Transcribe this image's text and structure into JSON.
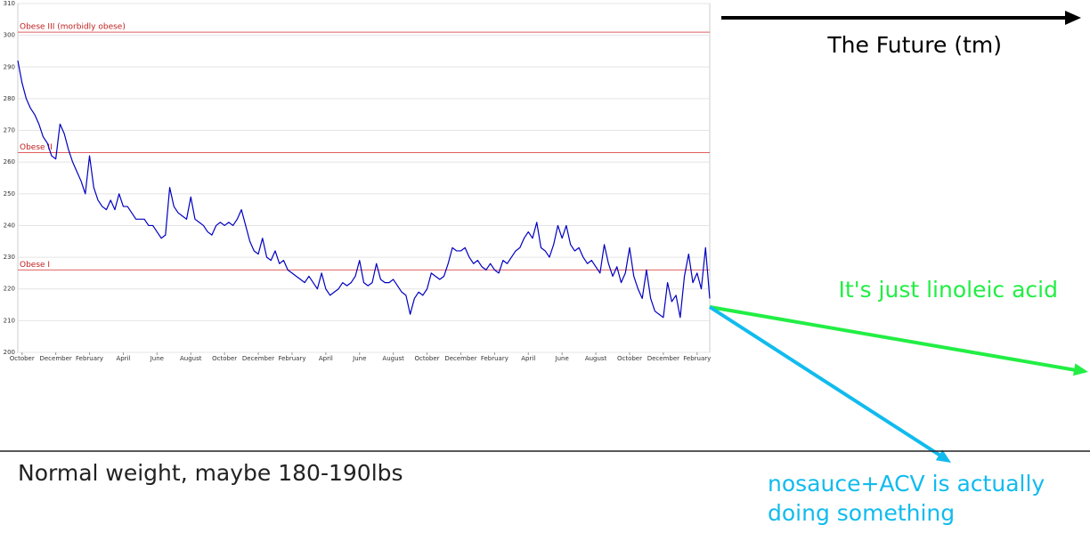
{
  "chart_data": {
    "type": "line",
    "categories": [
      null,
      "October",
      null,
      null,
      null,
      null,
      null,
      null,
      null,
      "December",
      null,
      null,
      null,
      null,
      null,
      null,
      null,
      "February",
      null,
      null,
      null,
      null,
      null,
      null,
      null,
      "April",
      null,
      null,
      null,
      null,
      null,
      null,
      null,
      "June",
      null,
      null,
      null,
      null,
      null,
      null,
      null,
      "August",
      null,
      null,
      null,
      null,
      null,
      null,
      null,
      "October",
      null,
      null,
      null,
      null,
      null,
      null,
      null,
      "December",
      null,
      null,
      null,
      null,
      null,
      null,
      null,
      "February",
      null,
      null,
      null,
      null,
      null,
      null,
      null,
      "April",
      null,
      null,
      null,
      null,
      null,
      null,
      null,
      "June",
      null,
      null,
      null,
      null,
      null,
      null,
      null,
      "August",
      null,
      null,
      null,
      null,
      null,
      null,
      null,
      "October",
      null,
      null,
      null,
      null,
      null,
      null,
      null,
      "December",
      null,
      null,
      null,
      null,
      null,
      null,
      null,
      "February",
      null,
      null,
      null,
      null,
      null,
      null,
      null,
      "April",
      null,
      null,
      null,
      null,
      null,
      null,
      null,
      "June",
      null,
      null,
      null,
      null,
      null,
      null,
      null,
      "August",
      null,
      null,
      null,
      null,
      null,
      null,
      null,
      "October",
      null,
      null,
      null,
      null,
      null,
      null,
      null,
      "December",
      null,
      null,
      null,
      null,
      null,
      null,
      null,
      "February",
      null,
      null,
      null
    ],
    "values": [
      292,
      285,
      280,
      277,
      275,
      272,
      268,
      266,
      262,
      261,
      272,
      269,
      264,
      260,
      257,
      254,
      250,
      262,
      252,
      248,
      246,
      245,
      248,
      245,
      250,
      246,
      246,
      244,
      242,
      242,
      242,
      240,
      240,
      238,
      236,
      237,
      252,
      246,
      244,
      243,
      242,
      249,
      242,
      241,
      240,
      238,
      237,
      240,
      241,
      240,
      241,
      240,
      242,
      245,
      240,
      235,
      232,
      231,
      236,
      230,
      229,
      232,
      228,
      229,
      226,
      225,
      224,
      223,
      222,
      224,
      222,
      220,
      225,
      220,
      218,
      219,
      220,
      222,
      221,
      222,
      224,
      229,
      222,
      221,
      222,
      228,
      223,
      222,
      222,
      223,
      221,
      219,
      218,
      212,
      217,
      219,
      218,
      220,
      225,
      224,
      223,
      224,
      228,
      233,
      232,
      232,
      233,
      230,
      228,
      229,
      227,
      226,
      228,
      226,
      225,
      229,
      228,
      230,
      232,
      233,
      236,
      238,
      236,
      241,
      233,
      232,
      230,
      234,
      240,
      236,
      240,
      234,
      232,
      233,
      230,
      228,
      229,
      227,
      225,
      234,
      228,
      224,
      227,
      222,
      225,
      233,
      224,
      220,
      217,
      226,
      217,
      213,
      212,
      211,
      222,
      216,
      218,
      211,
      224,
      231,
      222,
      225,
      220,
      233,
      217
    ],
    "color": "#0000c0",
    "ylim": [
      200,
      310
    ],
    "yticks": [
      200,
      210,
      220,
      230,
      240,
      250,
      260,
      270,
      280,
      290,
      300,
      310
    ],
    "grid": true,
    "reference_lines": [
      {
        "label": "Obese III (morbidly obese)",
        "value": 301,
        "color": "#e06060"
      },
      {
        "label": "Obese II",
        "value": 263,
        "color": "#e06060"
      },
      {
        "label": "Obese I",
        "value": 226,
        "color": "#e06060"
      }
    ],
    "annotations": [
      {
        "text": "The Future (tm)",
        "color": "#000000"
      },
      {
        "text": "It's just linoleic acid",
        "color": "#22ee44"
      },
      {
        "text_lines": [
          "nosauce+ACV is actually",
          "doing something"
        ],
        "color": "#11bbee"
      },
      {
        "text": "Normal weight, maybe 180-190lbs",
        "color": "#222222"
      }
    ]
  }
}
